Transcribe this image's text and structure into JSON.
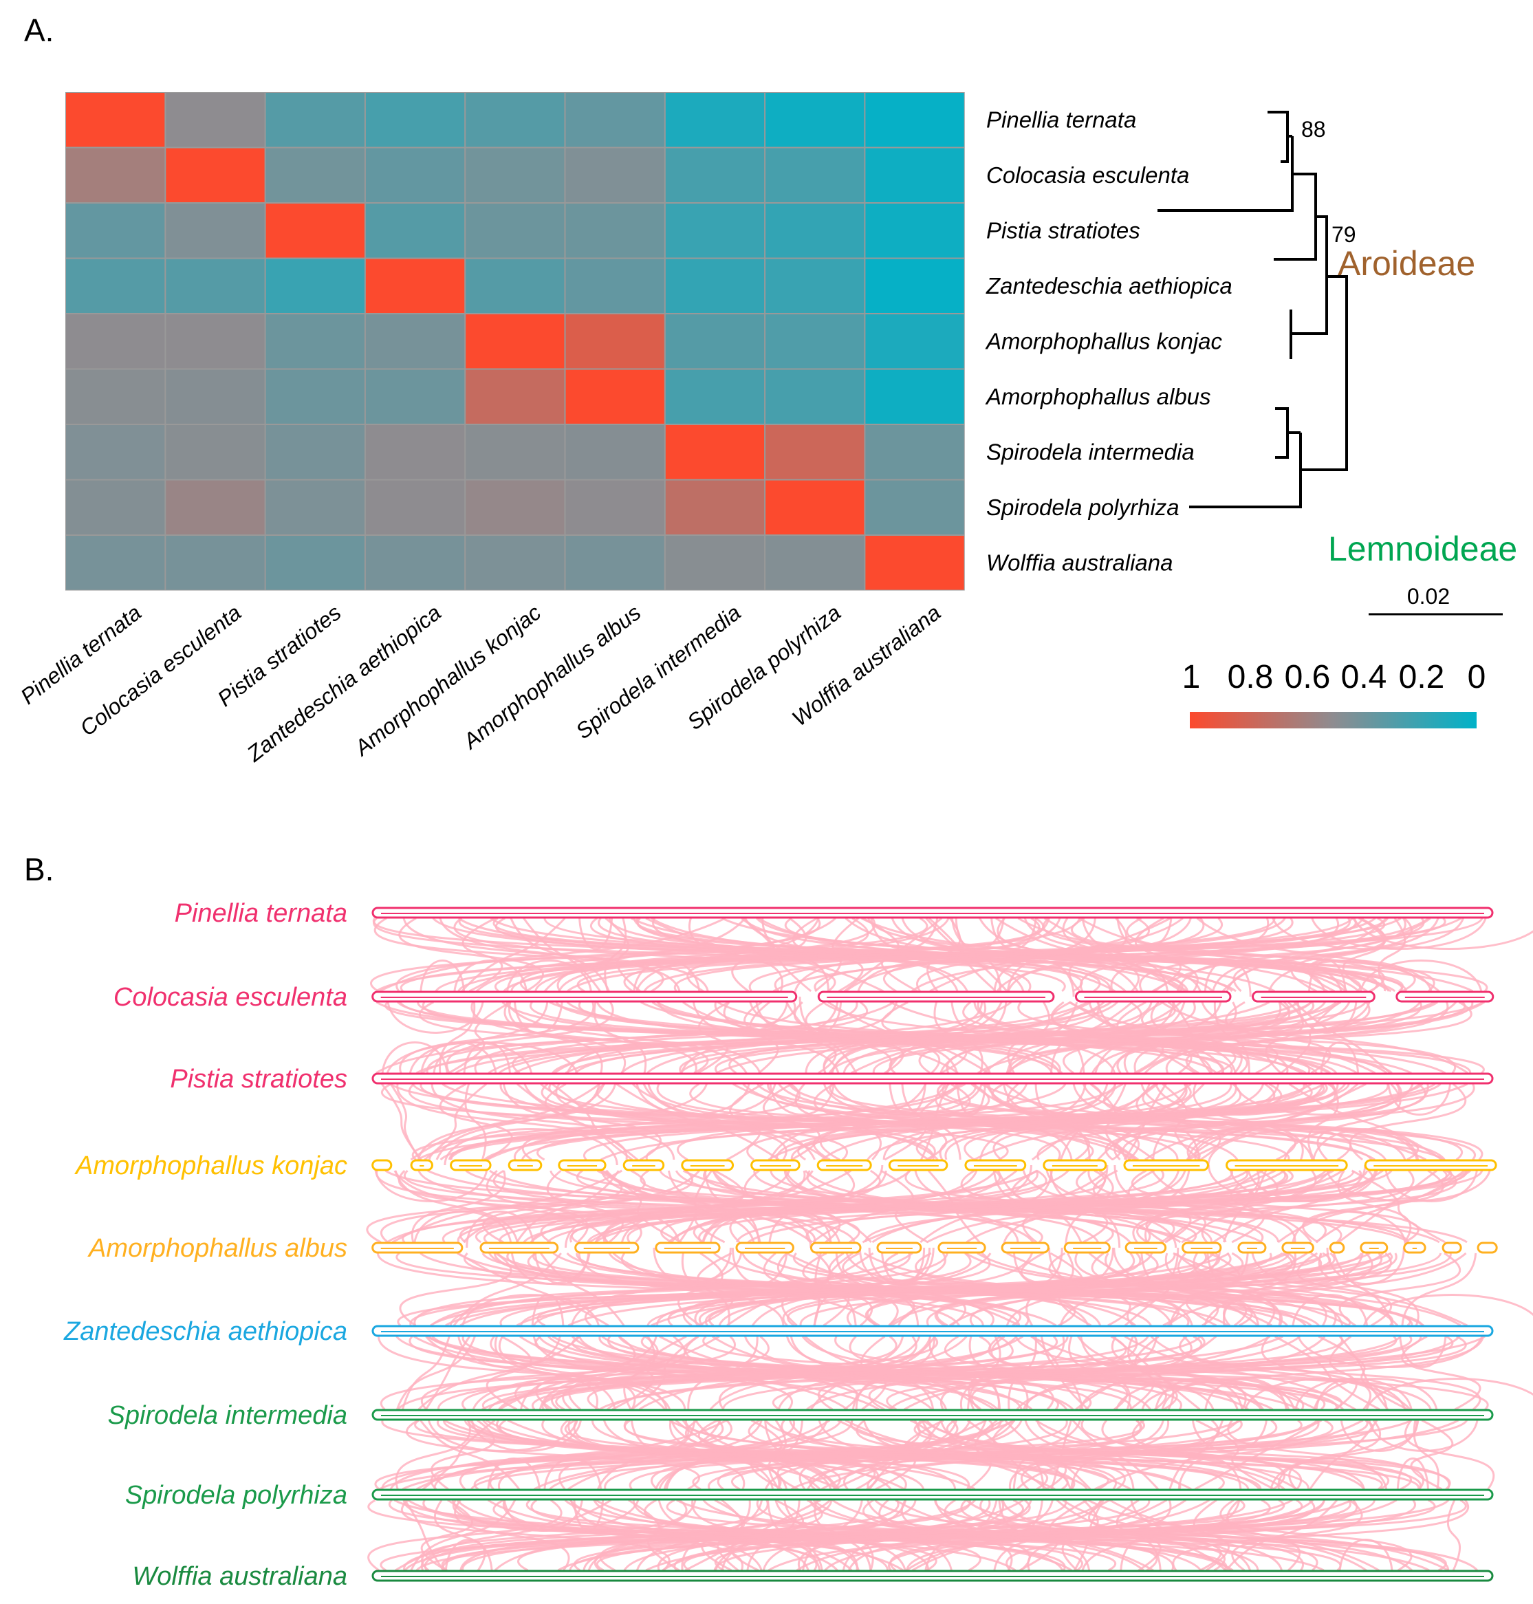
{
  "panel_a": {
    "label": "A.",
    "species": [
      "Pinellia ternata",
      "Colocasia esculenta",
      "Pistia stratiotes",
      "Zantedeschia aethiopica",
      "Amorphophallus konjac",
      "Amorphophallus albus",
      "Spirodela intermedia",
      "Spirodela polyrhiza",
      "Wolffia australiana"
    ],
    "tree": {
      "bootstrap": [
        "88",
        "79"
      ],
      "clades": [
        {
          "name": "Aroideae",
          "color": "#a0622d"
        },
        {
          "name": "Lemnoideae",
          "color": "#00a651"
        }
      ],
      "scale_bar": "0.02"
    },
    "legend": {
      "ticks": [
        "1",
        "0.8",
        "0.6",
        "0.4",
        "0.2",
        "0"
      ],
      "colors": {
        "high": "#fc4a2e",
        "mid": "#8e8c90",
        "low": "#00b2c8"
      }
    }
  },
  "chart_data": {
    "type": "heatmap",
    "title": "",
    "rows": [
      "Pinellia ternata",
      "Colocasia esculenta",
      "Pistia stratiotes",
      "Zantedeschia aethiopica",
      "Amorphophallus konjac",
      "Amorphophallus albus",
      "Spirodela intermedia",
      "Spirodela polyrhiza",
      "Wolffia australiana"
    ],
    "columns": [
      "Pinellia ternata",
      "Colocasia esculenta",
      "Pistia stratiotes",
      "Zantedeschia aethiopica",
      "Amorphophallus konjac",
      "Amorphophallus albus",
      "Spirodela intermedia",
      "Spirodela polyrhiza",
      "Wolffia australiana"
    ],
    "values": [
      [
        1,
        0.5,
        0.3,
        0.25,
        0.3,
        0.35,
        0.1,
        0.05,
        0.02
      ],
      [
        0.6,
        1,
        0.4,
        0.35,
        0.4,
        0.45,
        0.25,
        0.25,
        0.05
      ],
      [
        0.35,
        0.45,
        1,
        0.3,
        0.38,
        0.38,
        0.2,
        0.18,
        0.05
      ],
      [
        0.3,
        0.3,
        0.2,
        1,
        0.3,
        0.35,
        0.18,
        0.2,
        0.02
      ],
      [
        0.5,
        0.5,
        0.38,
        0.42,
        1,
        0.85,
        0.3,
        0.28,
        0.1
      ],
      [
        0.48,
        0.47,
        0.38,
        0.38,
        0.75,
        1,
        0.25,
        0.25,
        0.05
      ],
      [
        0.45,
        0.48,
        0.42,
        0.5,
        0.48,
        0.47,
        1,
        0.78,
        0.38
      ],
      [
        0.46,
        0.55,
        0.44,
        0.5,
        0.53,
        0.5,
        0.72,
        1,
        0.38
      ],
      [
        0.42,
        0.42,
        0.38,
        0.42,
        0.44,
        0.42,
        0.48,
        0.46,
        1
      ]
    ],
    "range": [
      0,
      1
    ]
  },
  "panel_b": {
    "label": "B.",
    "link_color": "#ffb3c1",
    "genomes": [
      {
        "name": "Pinellia ternata",
        "color": "#f0306e"
      },
      {
        "name": "Colocasia esculenta",
        "color": "#f0306e"
      },
      {
        "name": "Pistia stratiotes",
        "color": "#f0306e"
      },
      {
        "name": "Amorphophallus konjac",
        "color": "#ffc000"
      },
      {
        "name": "Amorphophallus albus",
        "color": "#ffb020"
      },
      {
        "name": "Zantedeschia aethiopica",
        "color": "#1aa7e0"
      },
      {
        "name": "Spirodela intermedia",
        "color": "#1a9a4a"
      },
      {
        "name": "Spirodela polyrhiza",
        "color": "#1a9a4a"
      },
      {
        "name": "Wolffia australiana",
        "color": "#1a8a40"
      }
    ]
  }
}
